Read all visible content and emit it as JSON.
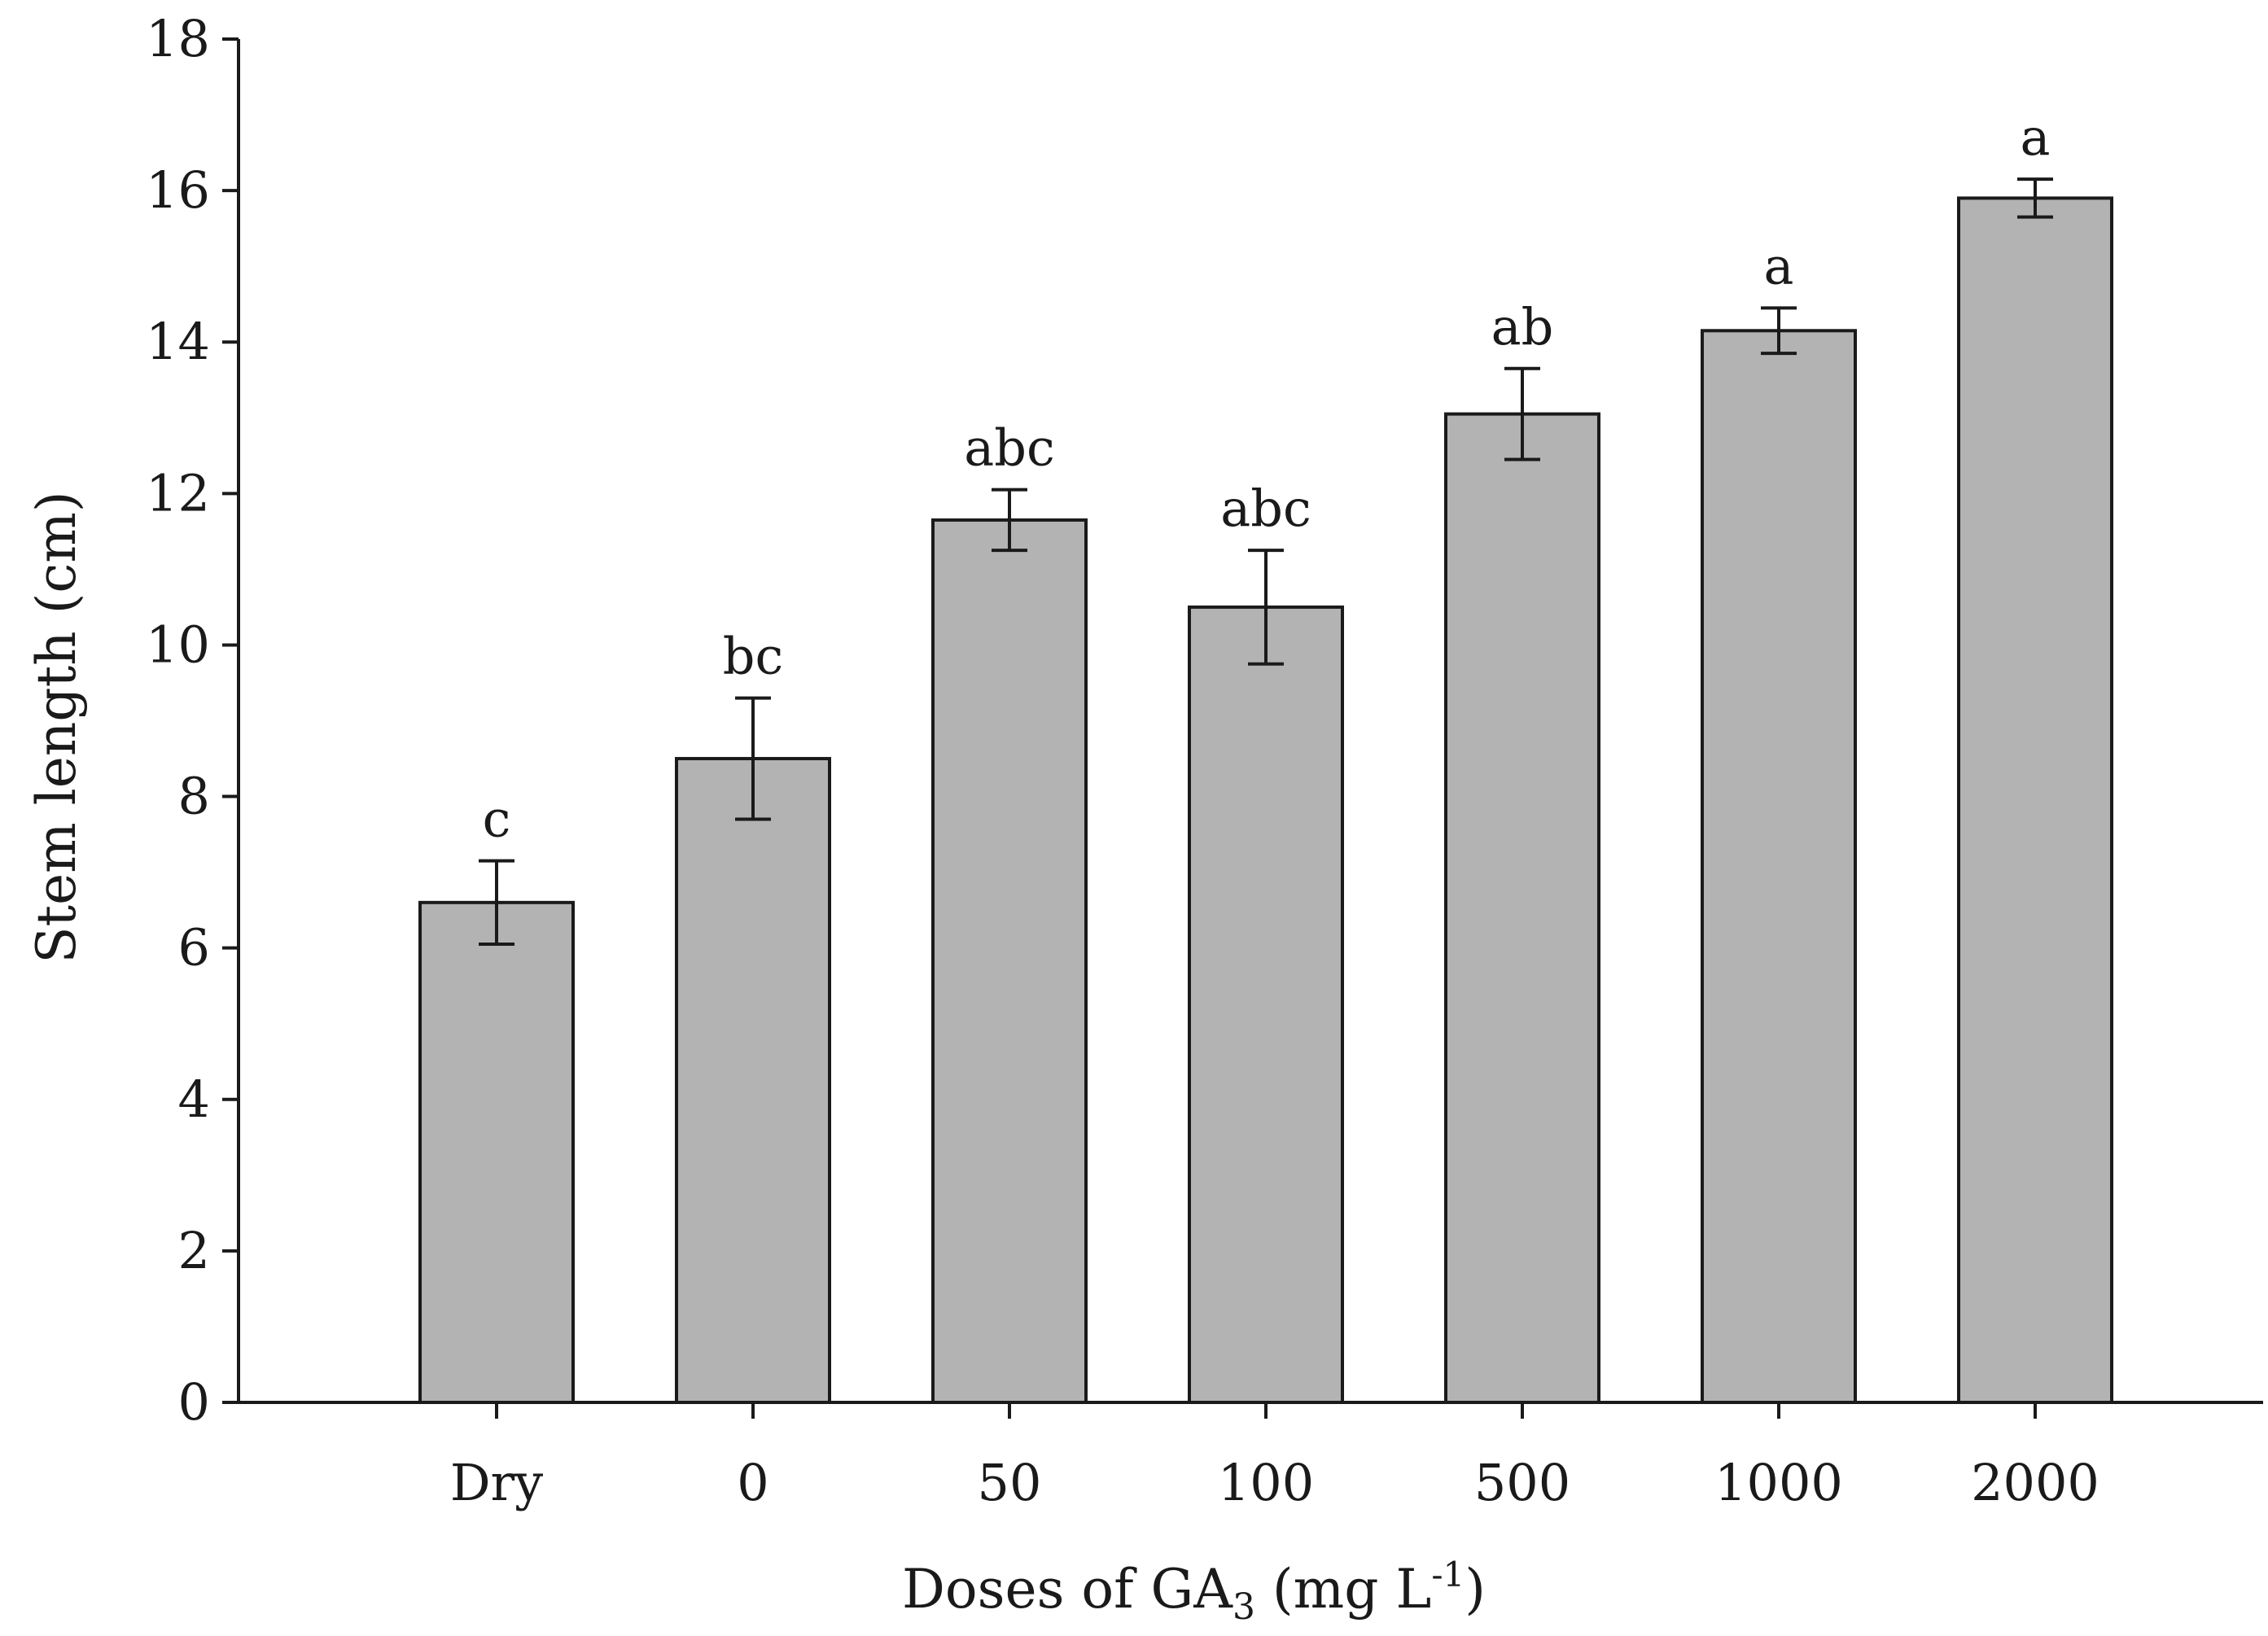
{
  "chart_data": {
    "type": "bar",
    "title": "",
    "xlabel": "Doses of GA3 (mg L-1)",
    "xlabel_parts": {
      "main": "Doses of GA",
      "subscript": "3",
      "unit_open": " (mg L",
      "superscript": "-1",
      "unit_close": ")"
    },
    "ylabel": "Stem length (cm)",
    "ylim": [
      0,
      18
    ],
    "yticks": [
      0,
      2,
      4,
      6,
      8,
      10,
      12,
      14,
      16,
      18
    ],
    "categories": [
      "Dry",
      "0",
      "50",
      "100",
      "500",
      "1000",
      "2000"
    ],
    "values": [
      6.6,
      8.5,
      11.65,
      10.5,
      13.05,
      14.15,
      15.9
    ],
    "errors": [
      0.55,
      0.8,
      0.4,
      0.75,
      0.6,
      0.3,
      0.25
    ],
    "significance": [
      "c",
      "bc",
      "abc",
      "abc",
      "ab",
      "a",
      "a"
    ],
    "bar_color": "#b3b3b3",
    "grid": false,
    "legend": "none"
  }
}
